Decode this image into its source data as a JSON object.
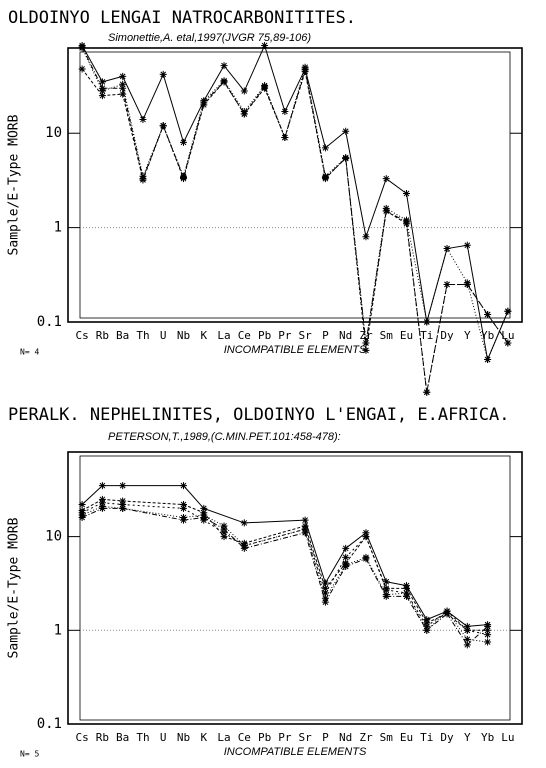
{
  "chart_data": [
    {
      "type": "line",
      "title": "OLDOINYO LENGAI NATROCARBONITITES.",
      "subtitle": "Simonettie,A. etal,1997(JVGR 75,89-106)",
      "y_label": "Sample/E-Type MORB",
      "x_label": "INCOMPATIBLE ELEMENTS",
      "n_label": "N= 4",
      "categories": [
        "Cs",
        "Rb",
        "Ba",
        "Th",
        "U",
        "Nb",
        "K",
        "La",
        "Ce",
        "Pb",
        "Pr",
        "Sr",
        "P",
        "Nd",
        "Zr",
        "Sm",
        "Eu",
        "Ti",
        "Dy",
        "Y",
        "Yb",
        "Lu"
      ],
      "color": "#000000",
      "log_y": true,
      "ylim": [
        0.1,
        80
      ],
      "yticks": [
        0.1,
        1,
        10
      ],
      "reference_line": 1,
      "series": [
        {
          "values": [
            85,
            35,
            40,
            14,
            42,
            8,
            22,
            52,
            28,
            85,
            17,
            48,
            7,
            10.5,
            0.8,
            3.3,
            2.3,
            0.1,
            0.6,
            0.65,
            0.04,
            0.13
          ]
        },
        {
          "values": [
            48,
            25,
            26,
            3.2,
            12,
            3.3,
            20,
            35,
            16,
            30,
            9,
            45,
            3.3,
            5.5,
            0.05,
            1.5,
            1.1,
            0.018,
            0.25,
            0.25,
            0.12,
            0.06
          ]
        },
        {
          "values": [
            80,
            28,
            33,
            3.5,
            12,
            3.5,
            22,
            36,
            17,
            32,
            9,
            50,
            3.5,
            5.5,
            0.06,
            1.6,
            1.2,
            0.1,
            0.6,
            0.26,
            0.04,
            0.13
          ]
        },
        {
          "values": [
            82,
            30,
            30,
            3.3,
            12,
            3.4,
            21,
            35,
            16,
            31,
            9,
            47,
            3.4,
            5.4,
            0.06,
            1.5,
            1.15,
            0.018,
            0.25,
            0.25,
            0.12,
            0.06
          ]
        }
      ]
    },
    {
      "type": "line",
      "title": "PERALK. NEPHELINITES,  OLDOINYO L'ENGAI, E.AFRICA.",
      "subtitle": "PETERSON,T.,1989,(C.MIN.PET.101:458-478):",
      "y_label": "Sample/E-Type MORB",
      "x_label": "INCOMPATIBLE ELEMENTS",
      "n_label": "N= 5",
      "categories": [
        "Cs",
        "Rb",
        "Ba",
        "Th",
        "U",
        "Nb",
        "K",
        "La",
        "Ce",
        "Pb",
        "Pr",
        "Sr",
        "P",
        "Nd",
        "Zr",
        "Sm",
        "Eu",
        "Ti",
        "Dy",
        "Y",
        "Yb",
        "Lu"
      ],
      "color": "#000000",
      "log_y": true,
      "ylim": [
        0.1,
        80
      ],
      "yticks": [
        0.1,
        1,
        10
      ],
      "reference_line": 1,
      "series": [
        {
          "values": [
            22,
            35,
            35,
            null,
            null,
            35,
            20,
            null,
            14,
            null,
            null,
            15,
            3.2,
            7.5,
            11,
            3.3,
            3,
            1.3,
            1.6,
            1.1,
            1.15,
            null
          ]
        },
        {
          "values": [
            19,
            25,
            24,
            null,
            null,
            22,
            18,
            10,
            8.5,
            null,
            null,
            13,
            2.8,
            5.2,
            10,
            2.8,
            2.8,
            1.2,
            1.5,
            1.0,
            1.0,
            null
          ]
        },
        {
          "values": [
            17,
            21,
            20,
            null,
            null,
            16,
            17,
            13,
            8,
            null,
            null,
            12,
            2.2,
            5,
            6,
            2.4,
            2.5,
            1.0,
            1.6,
            0.8,
            0.75,
            null
          ]
        },
        {
          "values": [
            16,
            20,
            20,
            null,
            null,
            15,
            16,
            12,
            7.5,
            null,
            null,
            11,
            2.0,
            4.8,
            5.8,
            2.3,
            2.3,
            1.0,
            1.5,
            0.7,
            1.1,
            null
          ]
        },
        {
          "values": [
            18,
            23,
            22,
            null,
            null,
            20,
            15,
            11,
            8,
            null,
            null,
            12,
            2.5,
            6,
            10,
            2.7,
            2.5,
            1.1,
            1.6,
            1.0,
            0.9,
            null
          ]
        }
      ]
    }
  ]
}
